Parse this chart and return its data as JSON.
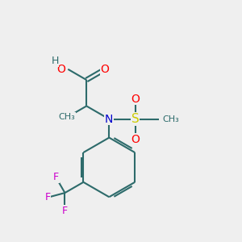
{
  "background_color": "#efefef",
  "bond_color": "#2d6b6b",
  "bond_width": 1.5,
  "atom_colors": {
    "O": "#ff0000",
    "N": "#0000cc",
    "S": "#cccc00",
    "F": "#cc00cc",
    "C": "#2d6b6b",
    "H": "#2d6b6b"
  },
  "figsize": [
    3.0,
    3.0
  ],
  "dpi": 100
}
